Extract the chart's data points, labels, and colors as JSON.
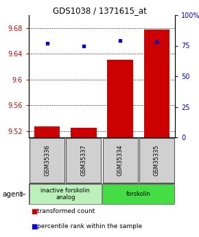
{
  "title": "GDS1038 / 1371615_at",
  "samples": [
    "GSM35336",
    "GSM35337",
    "GSM35334",
    "GSM35335"
  ],
  "red_values": [
    9.527,
    9.525,
    9.631,
    9.678
  ],
  "blue_values": [
    77,
    75,
    79,
    78
  ],
  "ylim_left": [
    9.51,
    9.7
  ],
  "ylim_right": [
    0,
    100
  ],
  "yticks_left": [
    9.52,
    9.56,
    9.6,
    9.64,
    9.68
  ],
  "yticks_right": [
    0,
    25,
    50,
    75,
    100
  ],
  "ytick_labels_right": [
    "0",
    "25",
    "50",
    "75",
    "100%"
  ],
  "bar_base": 9.51,
  "groups": [
    {
      "label": "inactive forskolin\nanalog",
      "span": [
        0,
        2
      ],
      "color": "#bbf0bb"
    },
    {
      "label": "forskolin",
      "span": [
        2,
        4
      ],
      "color": "#44dd44"
    }
  ],
  "legend_items": [
    {
      "color": "#cc0000",
      "label": "transformed count"
    },
    {
      "color": "#0000cc",
      "label": "percentile rank within the sample"
    }
  ],
  "bar_color": "#cc0000",
  "dot_color": "#0000cc",
  "bar_width": 0.7,
  "left_tick_color": "#cc0000",
  "right_tick_color": "#0000cc",
  "sample_box_color": "#d0d0d0"
}
